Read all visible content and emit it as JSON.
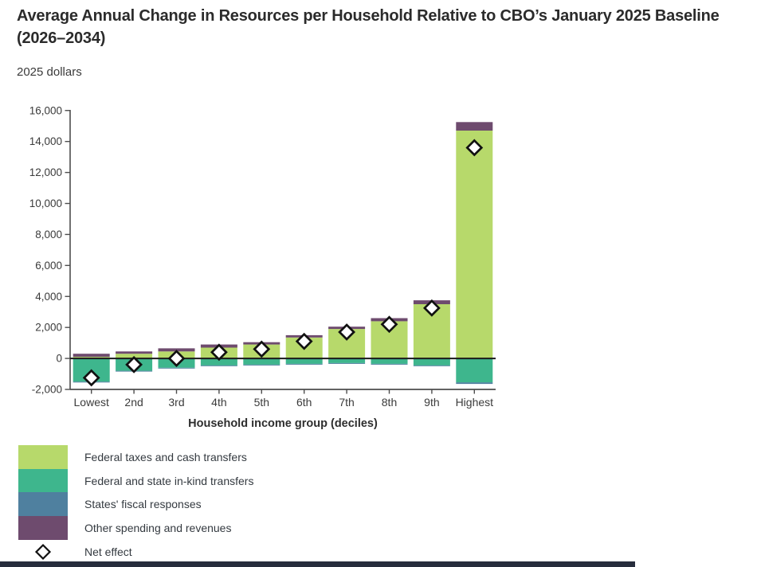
{
  "page": {
    "title": "Average Annual Change in Resources per Household Relative to CBO’s January 2025 Baseline (2026–2034)",
    "subtitle": "2025 dollars"
  },
  "chart_data": {
    "type": "bar",
    "stacked": true,
    "title": "Average Annual Change in Resources per Household Relative to CBO’s January 2025 Baseline (2026–2034)",
    "subtitle": "2025 dollars",
    "xlabel": "Household income group (deciles)",
    "ylabel": "",
    "categories": [
      "Lowest",
      "2nd",
      "3rd",
      "4th",
      "5th",
      "6th",
      "7th",
      "8th",
      "9th",
      "Highest"
    ],
    "series": [
      {
        "name": "Federal taxes and cash transfers",
        "color": "#b7d96b",
        "values": [
          100,
          300,
          450,
          700,
          900,
          1350,
          1900,
          2400,
          3500,
          14700
        ]
      },
      {
        "name": "Federal and state in-kind transfers",
        "color": "#3eb68d",
        "values": [
          -1500,
          -800,
          -600,
          -450,
          -400,
          -350,
          -300,
          -350,
          -450,
          -1550
        ]
      },
      {
        "name": "States' fiscal responses",
        "color": "#4f809f",
        "values": [
          -50,
          -50,
          -50,
          -50,
          -50,
          -50,
          -50,
          -50,
          -50,
          -100
        ]
      },
      {
        "name": "Other spending and revenues",
        "color": "#6e4b6e",
        "values": [
          200,
          150,
          200,
          200,
          150,
          150,
          150,
          200,
          250,
          550
        ]
      }
    ],
    "net_effect": {
      "name": "Net effect",
      "marker": "diamond",
      "values": [
        -1250,
        -400,
        0,
        400,
        600,
        1100,
        1700,
        2200,
        3250,
        13600
      ]
    },
    "ylim": [
      -2000,
      16000
    ],
    "ytick_step": 2000,
    "ytick_labels": [
      "-2,000",
      "0",
      "2,000",
      "4,000",
      "6,000",
      "8,000",
      "10,000",
      "12,000",
      "14,000",
      "16,000"
    ],
    "grid": false,
    "zero_line": true,
    "legend_position": "bottom-left"
  },
  "legend": {
    "items": [
      {
        "label": "Federal taxes and cash transfers",
        "swatch": "#b7d96b"
      },
      {
        "label": "Federal and state in-kind transfers",
        "swatch": "#3eb68d"
      },
      {
        "label": "States' fiscal responses",
        "swatch": "#4f809f"
      },
      {
        "label": "Other spending and revenues",
        "swatch": "#6e4b6e"
      },
      {
        "label": "Net effect",
        "swatch": "diamond"
      }
    ]
  },
  "colors": {
    "taxes_cash": "#b7d96b",
    "in_kind": "#3eb68d",
    "states_fiscal": "#4f809f",
    "other": "#6e4b6e",
    "zero_line": "#1a1a1a",
    "axis": "#4d4d4d",
    "tick_text": "#3b3b3b",
    "title_text": "#2b2b2b",
    "footer_bar": "#272d3c",
    "net_marker_fill": "#ffffff",
    "net_marker_stroke": "#111111"
  }
}
